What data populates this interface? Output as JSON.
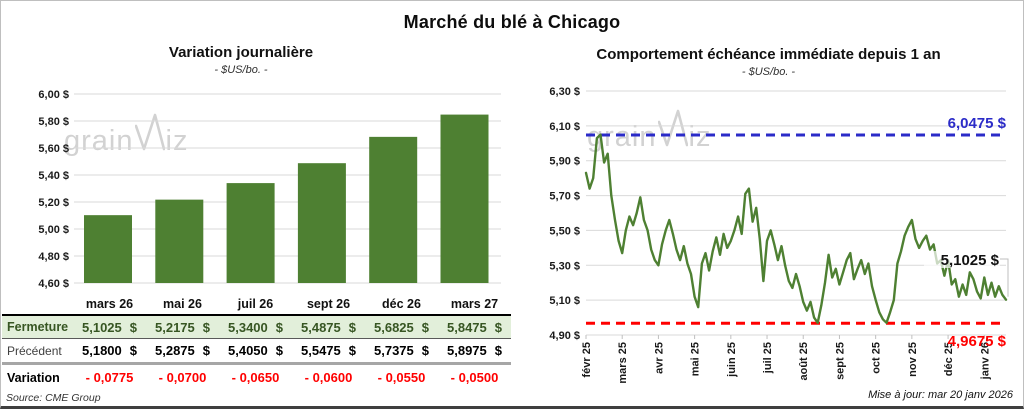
{
  "title": "Marché du blé à Chicago",
  "watermark": {
    "part1": "grain",
    "part2": "iz"
  },
  "footer": {
    "source": "Source: CME Group",
    "updated": "Mise à jour: mar 20 janv 2026"
  },
  "colors": {
    "green": "#4e8032",
    "light_green_bg": "#e2efda",
    "dark_green_text": "#375623",
    "red": "#ff0000",
    "blue": "#2b2bc8",
    "grid": "#d9d9d9",
    "watermark": "#d2d2d2",
    "leader": "#bfbfbf"
  },
  "chart_data": [
    {
      "type": "bar",
      "title": "Variation  journalière",
      "subtitle": "- $US/bo. -",
      "categories": [
        "mars 26",
        "mai 26",
        "juil 26",
        "sept 26",
        "déc 26",
        "mars 27"
      ],
      "values": [
        5.1025,
        5.2175,
        5.34,
        5.4875,
        5.6825,
        5.8475
      ],
      "ylim": [
        4.6,
        6.0
      ],
      "ytick_step": 0.2,
      "ytick_labels": [
        "6,00 $",
        "5,80 $",
        "5,60 $",
        "5,40 $",
        "5,20 $",
        "5,00 $",
        "4,80 $",
        "4,60 $"
      ],
      "grid": true,
      "legend": "none",
      "bar_color": "#4e8032"
    },
    {
      "type": "line",
      "title": "Comportement  échéance immédiate depuis 1 an",
      "subtitle": "- $US/bo. -",
      "x_labels": [
        "févr 25",
        "mars 25",
        "avr 25",
        "mai 25",
        "juin 25",
        "juil 25",
        "août 25",
        "sept 25",
        "oct 25",
        "nov 25",
        "déc 25",
        "janv 26"
      ],
      "points_per_month": 10,
      "values": [
        5.83,
        5.74,
        5.8,
        6.03,
        6.05,
        5.89,
        5.94,
        5.7,
        5.56,
        5.44,
        5.37,
        5.5,
        5.58,
        5.53,
        5.6,
        5.69,
        5.56,
        5.5,
        5.39,
        5.33,
        5.3,
        5.42,
        5.5,
        5.56,
        5.48,
        5.39,
        5.33,
        5.41,
        5.31,
        5.25,
        5.12,
        5.06,
        5.31,
        5.37,
        5.27,
        5.38,
        5.46,
        5.36,
        5.48,
        5.4,
        5.44,
        5.5,
        5.58,
        5.48,
        5.71,
        5.74,
        5.55,
        5.63,
        5.45,
        5.21,
        5.44,
        5.5,
        5.42,
        5.33,
        5.41,
        5.3,
        5.21,
        5.17,
        5.25,
        5.18,
        5.09,
        5.04,
        5.09,
        5.0,
        4.97,
        5.07,
        5.2,
        5.36,
        5.23,
        5.28,
        5.19,
        5.26,
        5.33,
        5.37,
        5.22,
        5.28,
        5.33,
        5.25,
        5.31,
        5.18,
        5.1,
        5.03,
        4.99,
        4.97,
        5.03,
        5.1,
        5.31,
        5.38,
        5.47,
        5.52,
        5.56,
        5.45,
        5.4,
        5.44,
        5.47,
        5.39,
        5.42,
        5.31,
        5.33,
        5.24,
        5.33,
        5.19,
        5.22,
        5.12,
        5.19,
        5.13,
        5.26,
        5.22,
        5.15,
        5.11,
        5.23,
        5.13,
        5.2,
        5.12,
        5.18,
        5.13,
        5.1025
      ],
      "ylim": [
        4.9,
        6.3
      ],
      "ytick_step": 0.2,
      "ytick_labels": [
        "6,30 $",
        "6,10 $",
        "5,90 $",
        "5,70 $",
        "5,50 $",
        "5,30 $",
        "5,10 $",
        "4,90 $"
      ],
      "grid": true,
      "legend": "none",
      "line_color": "#4e8032",
      "max_line": {
        "value": 6.0475,
        "label": "6,0475 $",
        "color": "#2b2bc8"
      },
      "min_line": {
        "value": 4.9675,
        "label": "4,9675 $",
        "color": "#ff0000"
      },
      "last_point": {
        "value": 5.1025,
        "label": "5,1025 $"
      }
    }
  ],
  "table": {
    "header": [
      "mars 26",
      "mai 26",
      "juil 26",
      "sept 26",
      "déc 26",
      "mars 27"
    ],
    "rows": [
      {
        "label": "Fermeture",
        "style": "fermeture",
        "values": [
          "5,1025 $",
          "5,2175 $",
          "5,3400 $",
          "5,4875 $",
          "5,6825 $",
          "5,8475 $"
        ]
      },
      {
        "label": "Précédent",
        "style": "precedent",
        "values": [
          "5,1800 $",
          "5,2875 $",
          "5,4050 $",
          "5,5475 $",
          "5,7375 $",
          "5,8975 $"
        ]
      },
      {
        "label": "Variation",
        "style": "variation",
        "values": [
          "- 0,0775",
          "- 0,0700",
          "- 0,0650",
          "- 0,0600",
          "- 0,0550",
          "- 0,0500"
        ]
      }
    ]
  }
}
